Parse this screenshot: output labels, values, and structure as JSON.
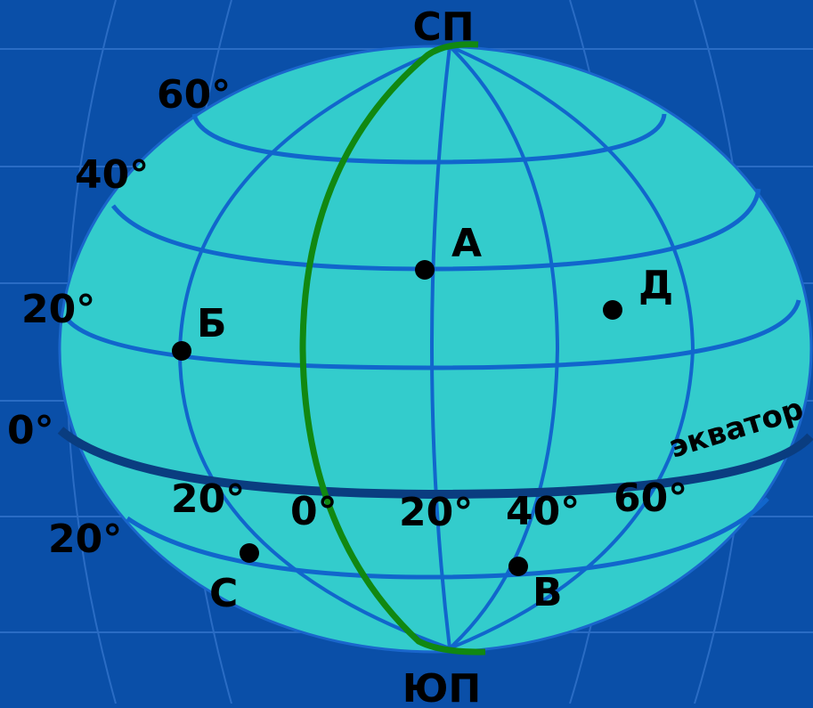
{
  "colors": {
    "background": "#0a4fa8",
    "background_grid": "#2a6cc4",
    "globe_fill": "#33cccc",
    "globe_outline": "#1a66cc",
    "grid_line": "#1166cc",
    "equator_line": "#0a3d80",
    "prime_meridian": "#118811",
    "point": "#000000",
    "text": "#000000"
  },
  "poles": {
    "north": "СП",
    "south": "ЮП"
  },
  "equator_label": "экватор",
  "latitude_labels": {
    "lat60n": "60°",
    "lat40n": "40°",
    "lat20n": "20°",
    "lat0": "0°",
    "lat20s": "20°"
  },
  "longitude_labels": {
    "lon20w": "20°",
    "lon0": "0°",
    "lon20e": "20°",
    "lon40e": "40°",
    "lon60e": "60°"
  },
  "points": {
    "A": "А",
    "B": "Б",
    "D": "Д",
    "C": "С",
    "V": "В"
  }
}
